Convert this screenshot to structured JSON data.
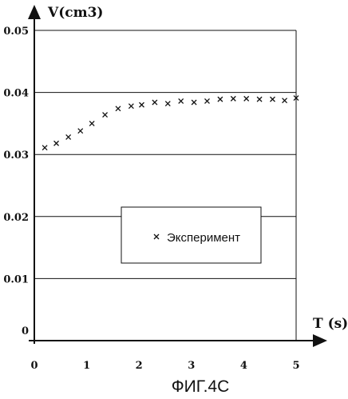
{
  "chart_data": {
    "type": "scatter",
    "ylabel": "V(cm3)",
    "xlabel": "T (s)",
    "caption": "ФИГ.4С",
    "x_ticks": [
      "0",
      "1",
      "2",
      "3",
      "4",
      "5"
    ],
    "y_ticks": [
      "0",
      "0.01",
      "0.02",
      "0.03",
      "0.04",
      "0.05"
    ],
    "xlim": [
      0,
      5
    ],
    "ylim": [
      0,
      0.05
    ],
    "grid": "horizontal",
    "legend_position": "center-right",
    "series": [
      {
        "name": "Эксперимент",
        "marker": "x",
        "x": [
          0.2,
          0.42,
          0.65,
          0.88,
          1.1,
          1.35,
          1.6,
          1.85,
          2.05,
          2.3,
          2.55,
          2.8,
          3.05,
          3.3,
          3.55,
          3.8,
          4.05,
          4.3,
          4.55,
          4.78,
          5.0
        ],
        "y": [
          0.0311,
          0.0318,
          0.0328,
          0.0338,
          0.035,
          0.0364,
          0.0374,
          0.0378,
          0.038,
          0.0384,
          0.0382,
          0.0386,
          0.0384,
          0.0386,
          0.0389,
          0.039,
          0.039,
          0.0389,
          0.0389,
          0.0387,
          0.0391
        ]
      }
    ]
  }
}
